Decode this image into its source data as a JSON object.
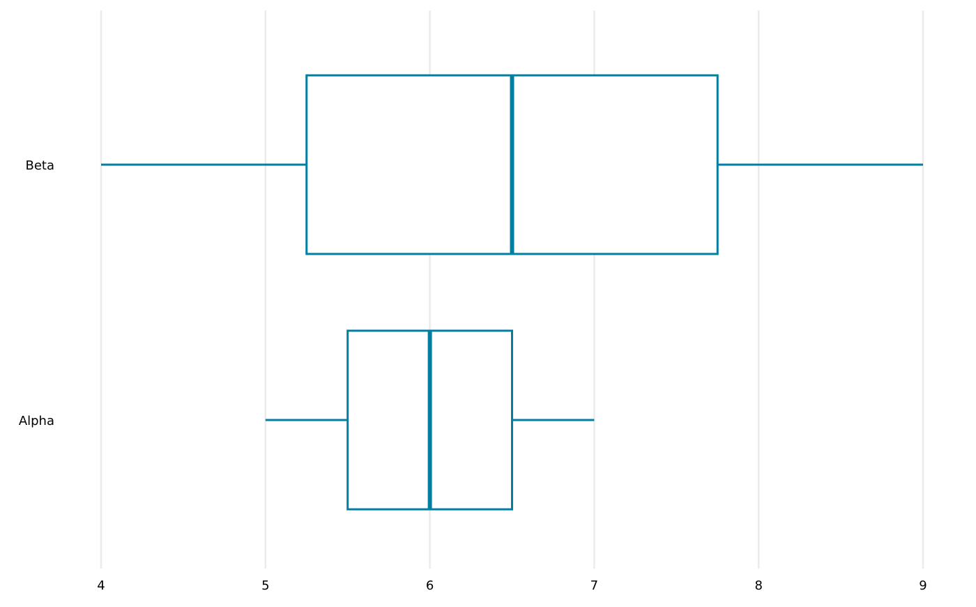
{
  "chart_data": {
    "type": "boxplot",
    "orientation": "horizontal",
    "title": "",
    "xlabel": "",
    "ylabel": "",
    "xlim": [
      4,
      9
    ],
    "x_ticks": [
      "4",
      "5",
      "6",
      "7",
      "8",
      "9"
    ],
    "grid": "vertical",
    "color": "#027fa0",
    "grid_color": "#ebebeb",
    "categories": [
      "Alpha",
      "Beta"
    ],
    "series": [
      {
        "category": "Alpha",
        "min": 5,
        "q1": 5.5,
        "median": 6,
        "q3": 6.5,
        "max": 7
      },
      {
        "category": "Beta",
        "min": 4,
        "q1": 5.25,
        "median": 6.5,
        "q3": 7.75,
        "max": 9
      }
    ]
  }
}
